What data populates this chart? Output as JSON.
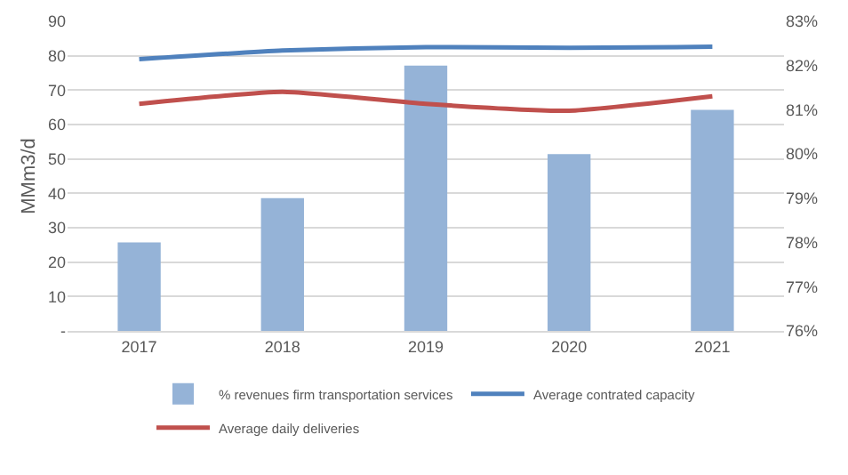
{
  "chart_data": {
    "type": "bar",
    "categories": [
      "2017",
      "2018",
      "2019",
      "2020",
      "2021"
    ],
    "ylabel": "MMm3/d",
    "series": [
      {
        "name": "% revenues firm transportation services",
        "axis": "y2",
        "color": "#95b3d7",
        "values": [
          78.0,
          79.0,
          82.0,
          80.0,
          81.0
        ]
      },
      {
        "name": "Average contrated capacity",
        "type": "line",
        "color": "#4f81bd",
        "values": [
          79,
          81.5,
          82.5,
          82.3,
          82.6
        ]
      },
      {
        "name": "Average daily deliveries",
        "type": "line",
        "color": "#c0504d",
        "values": [
          66,
          69.5,
          66,
          64,
          68.2
        ]
      }
    ],
    "ylim": [
      0,
      90
    ],
    "yticks": [
      {
        "value": 0,
        "label": "-"
      },
      10,
      20,
      30,
      40,
      50,
      60,
      70,
      80,
      90
    ],
    "y2lim": [
      76,
      83
    ],
    "y2ticks": [
      {
        "value": 76,
        "label": "76%"
      },
      {
        "value": 77,
        "label": "77%"
      },
      {
        "value": 78,
        "label": "78%"
      },
      {
        "value": 79,
        "label": "79%"
      },
      {
        "value": 80,
        "label": "80%"
      },
      {
        "value": 81,
        "label": "81%"
      },
      {
        "value": 82,
        "label": "82%"
      },
      {
        "value": 83,
        "label": "83%"
      }
    ],
    "grid": "y",
    "legend": "bottom"
  }
}
